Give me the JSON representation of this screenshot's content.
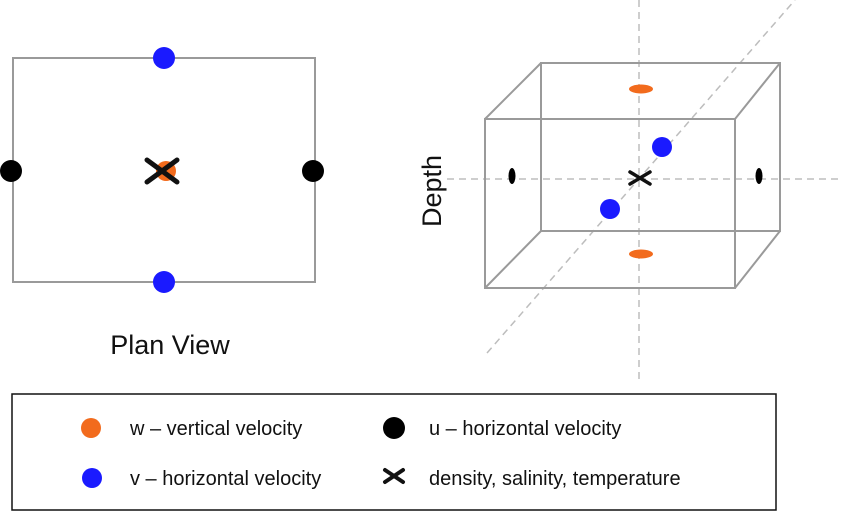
{
  "plan_view": {
    "title": "Plan View"
  },
  "cube_view": {
    "depth_label": "Depth"
  },
  "legend": {
    "items": [
      {
        "symbol": "orange-dot",
        "text": "w – vertical velocity"
      },
      {
        "symbol": "black-dot",
        "text": "u – horizontal velocity"
      },
      {
        "symbol": "blue-dot",
        "text": "v – horizontal velocity"
      },
      {
        "symbol": "cross",
        "text": "density, salinity, temperature"
      }
    ]
  },
  "colors": {
    "w": "#f26b1d",
    "u": "#000000",
    "v": "#1a1aff",
    "box": "#9a9a9a",
    "axis": "#bdbdbd"
  }
}
